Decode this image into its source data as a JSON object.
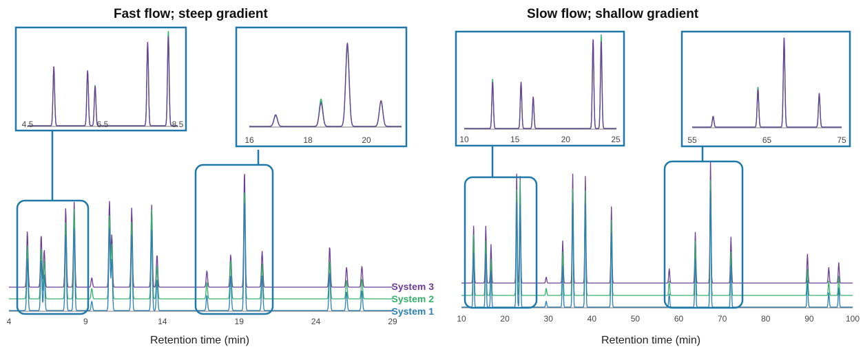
{
  "colors": {
    "system1": "#2a7fb5",
    "system2": "#34b06a",
    "system3": "#6b3d94",
    "frame": "#1f78a8",
    "axis": "#7a7a7a"
  },
  "legend": [
    "System 3",
    "System 2",
    "System 1"
  ],
  "chart_data": [
    {
      "type": "line",
      "title": "Fast flow; steep gradient",
      "xlabel": "Retention time (min)",
      "xlim": [
        4,
        29
      ],
      "xticks": [
        "4",
        "9",
        "14",
        "19",
        "24",
        "29"
      ],
      "series": [
        {
          "name": "System 3",
          "peaks": [
            [
              5.2,
              0.48
            ],
            [
              6.1,
              0.45
            ],
            [
              6.3,
              0.32
            ],
            [
              7.7,
              0.68
            ],
            [
              8.25,
              0.73
            ],
            [
              9.4,
              0.08
            ],
            [
              10.55,
              0.74
            ],
            [
              10.7,
              0.45
            ],
            [
              12.0,
              0.68
            ],
            [
              13.3,
              0.71
            ],
            [
              13.65,
              0.28
            ],
            [
              16.9,
              0.14
            ],
            [
              18.45,
              0.28
            ],
            [
              19.35,
              1.0
            ],
            [
              20.5,
              0.31
            ],
            [
              24.9,
              0.35
            ],
            [
              26.0,
              0.17
            ],
            [
              27.0,
              0.18
            ]
          ]
        },
        {
          "name": "System 2",
          "peaks": [
            [
              5.2,
              0.46
            ],
            [
              6.1,
              0.44
            ],
            [
              6.3,
              0.33
            ],
            [
              7.7,
              0.66
            ],
            [
              8.25,
              0.77
            ],
            [
              9.4,
              0.09
            ],
            [
              10.55,
              0.72
            ],
            [
              10.7,
              0.47
            ],
            [
              12.0,
              0.66
            ],
            [
              13.3,
              0.77
            ],
            [
              13.65,
              0.29
            ],
            [
              16.9,
              0.14
            ],
            [
              18.45,
              0.33
            ],
            [
              19.35,
              0.94
            ],
            [
              20.5,
              0.3
            ],
            [
              24.9,
              0.33
            ],
            [
              26.0,
              0.16
            ],
            [
              27.0,
              0.17
            ]
          ]
        },
        {
          "name": "System 1",
          "peaks": [
            [
              5.2,
              0.45
            ],
            [
              6.1,
              0.44
            ],
            [
              6.3,
              0.31
            ],
            [
              7.7,
              0.65
            ],
            [
              8.25,
              0.7
            ],
            [
              9.4,
              0.08
            ],
            [
              10.55,
              0.71
            ],
            [
              10.7,
              0.44
            ],
            [
              12.0,
              0.65
            ],
            [
              13.3,
              0.7
            ],
            [
              13.65,
              0.27
            ],
            [
              16.9,
              0.13
            ],
            [
              18.45,
              0.3
            ],
            [
              19.35,
              0.95
            ],
            [
              20.5,
              0.3
            ],
            [
              24.9,
              0.33
            ],
            [
              26.0,
              0.16
            ],
            [
              27.0,
              0.17
            ]
          ]
        }
      ],
      "insets": [
        {
          "xlim": [
            4.5,
            8.5
          ],
          "xticks": [
            "4.5",
            "6.5",
            "8.5"
          ]
        },
        {
          "xlim": [
            16,
            21.2
          ],
          "xticks": [
            "16",
            "18",
            "20"
          ]
        }
      ]
    },
    {
      "type": "line",
      "title": "Slow flow; shallow gradient",
      "xlabel": "Retention time (min)",
      "xlim": [
        10,
        100
      ],
      "xticks": [
        "10",
        "20",
        "30",
        "40",
        "50",
        "60",
        "70",
        "80",
        "90",
        "100"
      ],
      "series": [
        {
          "name": "System 3",
          "peaks": [
            [
              12.8,
              0.47
            ],
            [
              15.6,
              0.47
            ],
            [
              16.8,
              0.32
            ],
            [
              22.7,
              0.9
            ],
            [
              23.5,
              0.88
            ],
            [
              29.5,
              0.05
            ],
            [
              33.3,
              0.35
            ],
            [
              35.6,
              0.9
            ],
            [
              38.5,
              0.88
            ],
            [
              44.5,
              0.63
            ],
            [
              57.8,
              0.12
            ],
            [
              63.8,
              0.42
            ],
            [
              67.3,
              1.0
            ],
            [
              72.0,
              0.38
            ],
            [
              89.6,
              0.24
            ],
            [
              94.5,
              0.13
            ],
            [
              96.8,
              0.17
            ]
          ]
        },
        {
          "name": "System 2",
          "peaks": [
            [
              12.8,
              0.5
            ],
            [
              15.6,
              0.45
            ],
            [
              16.8,
              0.3
            ],
            [
              22.7,
              0.87
            ],
            [
              23.5,
              0.95
            ],
            [
              29.5,
              0.06
            ],
            [
              33.3,
              0.36
            ],
            [
              35.6,
              0.88
            ],
            [
              38.5,
              0.86
            ],
            [
              44.5,
              0.62
            ],
            [
              57.8,
              0.12
            ],
            [
              63.8,
              0.45
            ],
            [
              67.3,
              0.95
            ],
            [
              72.0,
              0.36
            ],
            [
              89.6,
              0.22
            ],
            [
              94.5,
              0.12
            ],
            [
              96.8,
              0.16
            ]
          ]
        },
        {
          "name": "System 1",
          "peaks": [
            [
              12.8,
              0.45
            ],
            [
              15.6,
              0.44
            ],
            [
              16.8,
              0.3
            ],
            [
              22.7,
              0.86
            ],
            [
              23.5,
              0.84
            ],
            [
              29.5,
              0.05
            ],
            [
              33.3,
              0.34
            ],
            [
              35.6,
              0.86
            ],
            [
              38.5,
              0.85
            ],
            [
              44.5,
              0.61
            ],
            [
              57.8,
              0.11
            ],
            [
              63.8,
              0.4
            ],
            [
              67.3,
              0.96
            ],
            [
              72.0,
              0.35
            ],
            [
              89.6,
              0.22
            ],
            [
              94.5,
              0.12
            ],
            [
              96.8,
              0.16
            ]
          ]
        }
      ],
      "insets": [
        {
          "xlim": [
            10,
            25
          ],
          "xticks": [
            "10",
            "15",
            "20",
            "25"
          ]
        },
        {
          "xlim": [
            55,
            75
          ],
          "xticks": [
            "55",
            "65",
            "75"
          ]
        }
      ]
    }
  ]
}
